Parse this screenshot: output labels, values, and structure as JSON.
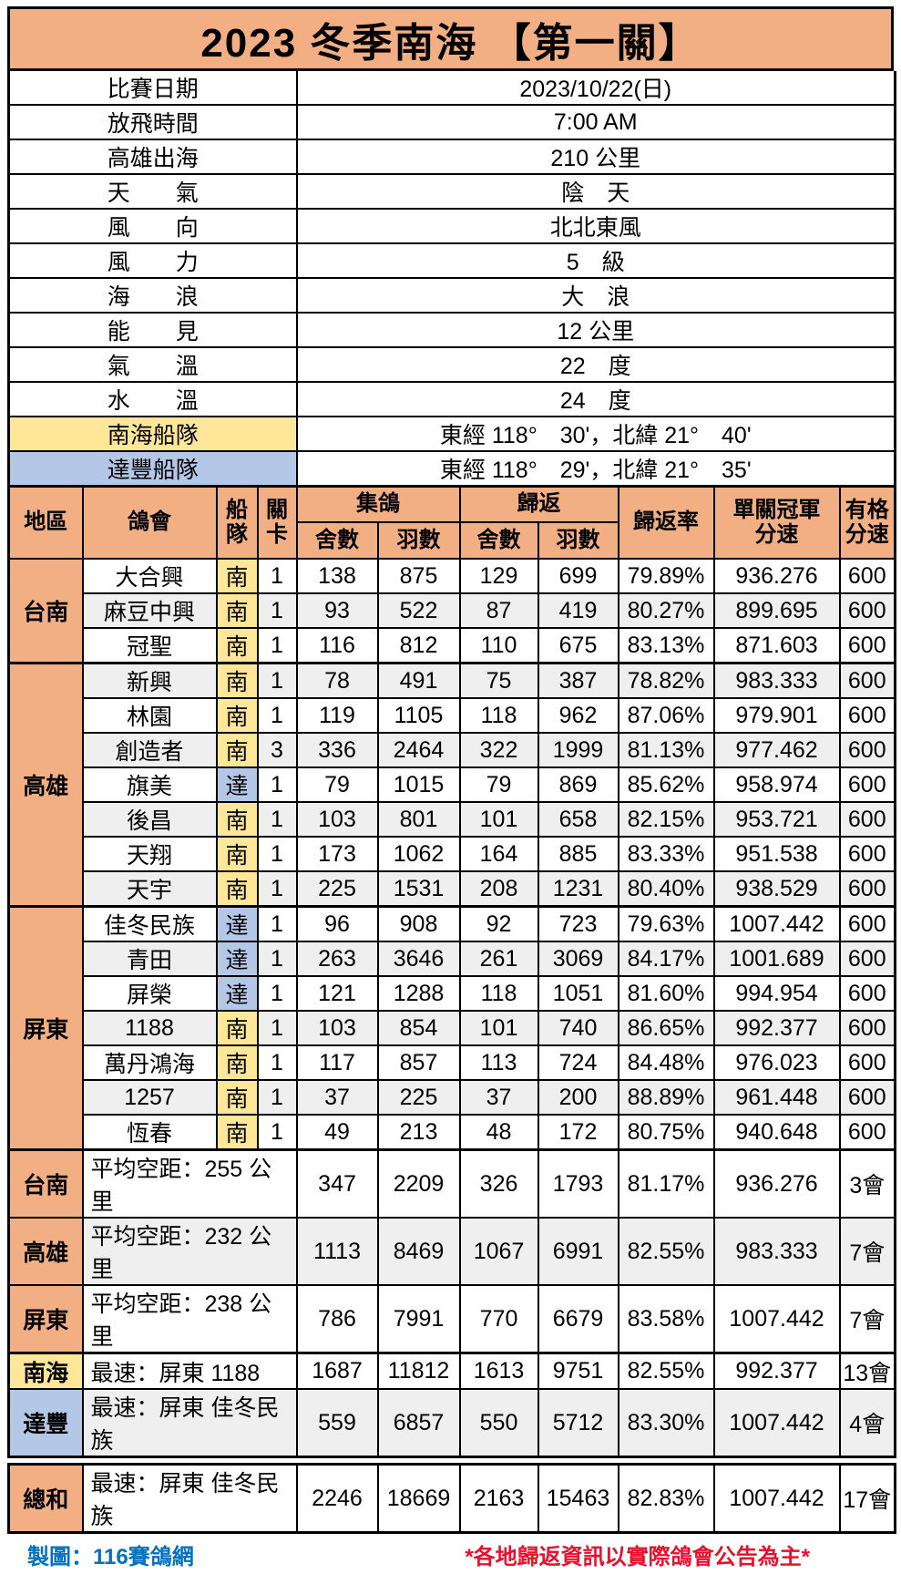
{
  "title": "2023 冬季南海 【第一關】",
  "colors": {
    "header_orange": "#F3AF84",
    "fleet_yellow": "#FFE699",
    "fleet_blue": "#B4C7E7",
    "alt_row_gray": "#EFEFEF",
    "credit_blue": "#0070C0",
    "notice_red": "#E8112D"
  },
  "info_rows": [
    {
      "label": "比賽日期",
      "value": "2023/10/22(日)"
    },
    {
      "label": "放飛時間",
      "value": "7:00 AM"
    },
    {
      "label": "高雄出海",
      "value": "210 公里"
    },
    {
      "label": "天　　氣",
      "value": "陰　天"
    },
    {
      "label": "風　　向",
      "value": "北北東風"
    },
    {
      "label": "風　　力",
      "value": "5　級"
    },
    {
      "label": "海　　浪",
      "value": "大　浪"
    },
    {
      "label": "能　　見",
      "value": "12 公里"
    },
    {
      "label": "氣　　溫",
      "value": "22　度"
    },
    {
      "label": "水　　溫",
      "value": "24　度"
    },
    {
      "label": "南海船隊",
      "label_color": "yellow",
      "value": "東經 118°　30'，北緯 21°　40'"
    },
    {
      "label": "達豐船隊",
      "label_color": "blue",
      "value": "東經 118°　29'，北緯 21°　35'"
    }
  ],
  "table": {
    "headers": {
      "region": "地區",
      "club": "鴿會",
      "fleet": "船\n隊",
      "stage": "關\n卡",
      "collected": "集鴿",
      "returned": "歸返",
      "lofts": "舍數",
      "birds": "羽數",
      "return_rate": "歸返率",
      "champion_speed": "單關冠軍\n分速",
      "qualify_speed": "有格\n分速"
    },
    "groups": [
      {
        "region": "台南",
        "rows": [
          {
            "club": "大合興",
            "fleet": "南",
            "fleet_color": "yellow",
            "stage": "1",
            "c_lofts": "138",
            "c_birds": "875",
            "r_lofts": "129",
            "r_birds": "699",
            "rate": "79.89%",
            "speed": "936.276",
            "qualify": "600"
          },
          {
            "club": "麻豆中興",
            "fleet": "南",
            "fleet_color": "yellow",
            "stage": "1",
            "c_lofts": "93",
            "c_birds": "522",
            "r_lofts": "87",
            "r_birds": "419",
            "rate": "80.27%",
            "speed": "899.695",
            "qualify": "600"
          },
          {
            "club": "冠聖",
            "fleet": "南",
            "fleet_color": "yellow",
            "stage": "1",
            "c_lofts": "116",
            "c_birds": "812",
            "r_lofts": "110",
            "r_birds": "675",
            "rate": "83.13%",
            "speed": "871.603",
            "qualify": "600"
          }
        ]
      },
      {
        "region": "高雄",
        "rows": [
          {
            "club": "新興",
            "fleet": "南",
            "fleet_color": "yellow",
            "stage": "1",
            "c_lofts": "78",
            "c_birds": "491",
            "r_lofts": "75",
            "r_birds": "387",
            "rate": "78.82%",
            "speed": "983.333",
            "qualify": "600"
          },
          {
            "club": "林園",
            "fleet": "南",
            "fleet_color": "yellow",
            "stage": "1",
            "c_lofts": "119",
            "c_birds": "1105",
            "r_lofts": "118",
            "r_birds": "962",
            "rate": "87.06%",
            "speed": "979.901",
            "qualify": "600"
          },
          {
            "club": "創造者",
            "fleet": "南",
            "fleet_color": "yellow",
            "stage": "3",
            "c_lofts": "336",
            "c_birds": "2464",
            "r_lofts": "322",
            "r_birds": "1999",
            "rate": "81.13%",
            "speed": "977.462",
            "qualify": "600"
          },
          {
            "club": "旗美",
            "fleet": "達",
            "fleet_color": "blue",
            "stage": "1",
            "c_lofts": "79",
            "c_birds": "1015",
            "r_lofts": "79",
            "r_birds": "869",
            "rate": "85.62%",
            "speed": "958.974",
            "qualify": "600"
          },
          {
            "club": "後昌",
            "fleet": "南",
            "fleet_color": "yellow",
            "stage": "1",
            "c_lofts": "103",
            "c_birds": "801",
            "r_lofts": "101",
            "r_birds": "658",
            "rate": "82.15%",
            "speed": "953.721",
            "qualify": "600"
          },
          {
            "club": "天翔",
            "fleet": "南",
            "fleet_color": "yellow",
            "stage": "1",
            "c_lofts": "173",
            "c_birds": "1062",
            "r_lofts": "164",
            "r_birds": "885",
            "rate": "83.33%",
            "speed": "951.538",
            "qualify": "600"
          },
          {
            "club": "天宇",
            "fleet": "南",
            "fleet_color": "yellow",
            "stage": "1",
            "c_lofts": "225",
            "c_birds": "1531",
            "r_lofts": "208",
            "r_birds": "1231",
            "rate": "80.40%",
            "speed": "938.529",
            "qualify": "600"
          }
        ]
      },
      {
        "region": "屏東",
        "rows": [
          {
            "club": "佳冬民族",
            "fleet": "達",
            "fleet_color": "blue",
            "stage": "1",
            "c_lofts": "96",
            "c_birds": "908",
            "r_lofts": "92",
            "r_birds": "723",
            "rate": "79.63%",
            "speed": "1007.442",
            "qualify": "600"
          },
          {
            "club": "青田",
            "fleet": "達",
            "fleet_color": "blue",
            "stage": "1",
            "c_lofts": "263",
            "c_birds": "3646",
            "r_lofts": "261",
            "r_birds": "3069",
            "rate": "84.17%",
            "speed": "1001.689",
            "qualify": "600"
          },
          {
            "club": "屏榮",
            "fleet": "達",
            "fleet_color": "blue",
            "stage": "1",
            "c_lofts": "121",
            "c_birds": "1288",
            "r_lofts": "118",
            "r_birds": "1051",
            "rate": "81.60%",
            "speed": "994.954",
            "qualify": "600"
          },
          {
            "club": "1188",
            "fleet": "南",
            "fleet_color": "yellow",
            "stage": "1",
            "c_lofts": "103",
            "c_birds": "854",
            "r_lofts": "101",
            "r_birds": "740",
            "rate": "86.65%",
            "speed": "992.377",
            "qualify": "600"
          },
          {
            "club": "萬丹鴻海",
            "fleet": "南",
            "fleet_color": "yellow",
            "stage": "1",
            "c_lofts": "117",
            "c_birds": "857",
            "r_lofts": "113",
            "r_birds": "724",
            "rate": "84.48%",
            "speed": "976.023",
            "qualify": "600"
          },
          {
            "club": "1257",
            "fleet": "南",
            "fleet_color": "yellow",
            "stage": "1",
            "c_lofts": "37",
            "c_birds": "225",
            "r_lofts": "37",
            "r_birds": "200",
            "rate": "88.89%",
            "speed": "961.448",
            "qualify": "600"
          },
          {
            "club": "恆春",
            "fleet": "南",
            "fleet_color": "yellow",
            "stage": "1",
            "c_lofts": "49",
            "c_birds": "213",
            "r_lofts": "48",
            "r_birds": "172",
            "rate": "80.75%",
            "speed": "940.648",
            "qualify": "600"
          }
        ]
      }
    ],
    "averages": [
      {
        "label": "台南",
        "label_color": "orange",
        "desc": "平均空距：255 公里",
        "c_lofts": "347",
        "c_birds": "2209",
        "r_lofts": "326",
        "r_birds": "1793",
        "rate": "81.17%",
        "speed": "936.276",
        "clubs": "3會",
        "shaded": false
      },
      {
        "label": "高雄",
        "label_color": "orange",
        "desc": "平均空距：232 公里",
        "c_lofts": "1113",
        "c_birds": "8469",
        "r_lofts": "1067",
        "r_birds": "6991",
        "rate": "82.55%",
        "speed": "983.333",
        "clubs": "7會",
        "shaded": true
      },
      {
        "label": "屏東",
        "label_color": "orange",
        "desc": "平均空距：238 公里",
        "c_lofts": "786",
        "c_birds": "7991",
        "r_lofts": "770",
        "r_birds": "6679",
        "rate": "83.58%",
        "speed": "1007.442",
        "clubs": "7會",
        "shaded": false
      }
    ],
    "fleets": [
      {
        "label": "南海",
        "label_color": "yellow",
        "desc": "最速：屏東 1188",
        "c_lofts": "1687",
        "c_birds": "11812",
        "r_lofts": "1613",
        "r_birds": "9751",
        "rate": "82.55%",
        "speed": "992.377",
        "clubs": "13會",
        "shaded": false
      },
      {
        "label": "達豐",
        "label_color": "blue",
        "desc": "最速：屏東 佳冬民族",
        "c_lofts": "559",
        "c_birds": "6857",
        "r_lofts": "550",
        "r_birds": "5712",
        "rate": "83.30%",
        "speed": "1007.442",
        "clubs": "4會",
        "shaded": true
      }
    ],
    "total": {
      "label": "總和",
      "label_color": "orange",
      "desc": "最速：屏東 佳冬民族",
      "c_lofts": "2246",
      "c_birds": "18669",
      "r_lofts": "2163",
      "r_birds": "15463",
      "rate": "82.83%",
      "speed": "1007.442",
      "clubs": "17會",
      "shaded": false
    }
  },
  "footer": {
    "credit": "製圖：116賽鴿網",
    "notice": "*各地歸返資訊以實際鴿會公告為主*"
  }
}
